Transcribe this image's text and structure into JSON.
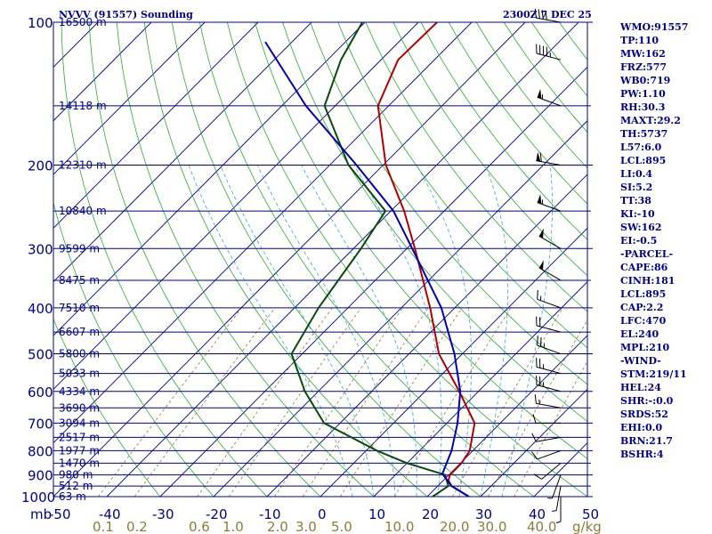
{
  "header": {
    "station": "NVVV (91557) Sounding",
    "time": "2300Z  7 DEC 25"
  },
  "indices": [
    "WMO:91557",
    "TP:110",
    "MW:162",
    "FRZ:577",
    "WB0:719",
    "PW:1.10",
    "RH:30.3",
    "MAXT:29.2",
    "TH:5737",
    "L57:6.0",
    "LCL:895",
    "LI:0.4",
    "SI:5.2",
    "TT:38",
    "KI:-10",
    "SW:162",
    "EI:-0.5",
    "-PARCEL-",
    "CAPE:86",
    "CINH:181",
    "LCL:895",
    "CAP:2.2",
    "LFC:470",
    "EL:240",
    "MPL:210",
    "-WIND-",
    "STM:219/11",
    "HEL:24",
    "SHR:-:0.0",
    "SRDS:52",
    "EHI:0.0",
    "BRN:21.7",
    "BSHR:4"
  ],
  "colors": {
    "temperature": "#b00000",
    "dewpoint": "#0a4a0a",
    "parcel": "#0000b0",
    "isobar": "#00008b",
    "isotherm": "#00008b",
    "dry_adiabat": "#2eaa2e",
    "moist_adiabat": "#36a6d6",
    "mixing_ratio": "#8b7d3a",
    "labels": "#00008b"
  },
  "chart_data": {
    "type": "line",
    "title": "NVVV (91557) Sounding",
    "xlabel": "",
    "ylabel": "mb",
    "ylim": [
      1000,
      100
    ],
    "xlim": [
      -50,
      50
    ],
    "y_scale": "log",
    "pressure_ticks": [
      {
        "p": 100,
        "label": "100"
      },
      {
        "p": 200,
        "label": "200"
      },
      {
        "p": 300,
        "label": "300"
      },
      {
        "p": 400,
        "label": "400"
      },
      {
        "p": 500,
        "label": "500"
      },
      {
        "p": 600,
        "label": "600"
      },
      {
        "p": 700,
        "label": "700"
      },
      {
        "p": 800,
        "label": "800"
      },
      {
        "p": 900,
        "label": "900"
      },
      {
        "p": 1000,
        "label": "1000"
      }
    ],
    "temperature_ticks": [
      "-50",
      "-40",
      "-30",
      "-20",
      "-10",
      "0",
      "10",
      "20",
      "30",
      "40",
      "50"
    ],
    "height_labels": [
      {
        "p": 100,
        "label": "16500 m"
      },
      {
        "p": 150,
        "label": "14118 m"
      },
      {
        "p": 200,
        "label": "12310 m"
      },
      {
        "p": 250,
        "label": "10840 m"
      },
      {
        "p": 300,
        "label": "9599 m"
      },
      {
        "p": 350,
        "label": "8475 m"
      },
      {
        "p": 400,
        "label": "7510 m"
      },
      {
        "p": 450,
        "label": "6607 m"
      },
      {
        "p": 500,
        "label": "5800 m"
      },
      {
        "p": 550,
        "label": "5033 m"
      },
      {
        "p": 600,
        "label": "4334 m"
      },
      {
        "p": 650,
        "label": "3690 m"
      },
      {
        "p": 700,
        "label": "3094 m"
      },
      {
        "p": 750,
        "label": "2517 m"
      },
      {
        "p": 800,
        "label": "1977 m"
      },
      {
        "p": 850,
        "label": "1470 m"
      },
      {
        "p": 900,
        "label": "980 m"
      },
      {
        "p": 950,
        "label": "512 m"
      },
      {
        "p": 1000,
        "label": "63 m"
      }
    ],
    "mixing_ratio_labels": [
      {
        "w": 0.1,
        "label": "0.1"
      },
      {
        "w": 0.2,
        "label": "0.2"
      },
      {
        "w": 0.6,
        "label": "0.6"
      },
      {
        "w": 1.0,
        "label": "1.0"
      },
      {
        "w": 2.0,
        "label": "2.0"
      },
      {
        "w": 3.0,
        "label": "3.0"
      },
      {
        "w": 5.0,
        "label": "5.0"
      },
      {
        "w": 10.0,
        "label": "10.0"
      },
      {
        "w": 20.0,
        "label": "20.0"
      },
      {
        "w": 30.0,
        "label": "30.0"
      },
      {
        "w": 40.0,
        "label": "40.0"
      }
    ],
    "mixing_ratio_unit": "g/kg",
    "series": [
      {
        "key": "temperature",
        "points": [
          [
            1000,
            27.8
          ],
          [
            950,
            22.6
          ],
          [
            925,
            21.0
          ],
          [
            900,
            20.2
          ],
          [
            850,
            20.2
          ],
          [
            800,
            19.4
          ],
          [
            700,
            15.2
          ],
          [
            600,
            6.4
          ],
          [
            500,
            -4.4
          ],
          [
            400,
            -14.6
          ],
          [
            300,
            -28.5
          ],
          [
            250,
            -37.5
          ],
          [
            200,
            -49.5
          ],
          [
            150,
            -62.0
          ],
          [
            120,
            -66.8
          ],
          [
            100,
            -66.5
          ]
        ]
      },
      {
        "key": "dewpoint",
        "points": [
          [
            1000,
            21.0
          ],
          [
            950,
            22.0
          ],
          [
            900,
            19.3
          ],
          [
            850,
            10.0
          ],
          [
            800,
            2.0
          ],
          [
            700,
            -13.0
          ],
          [
            600,
            -22.5
          ],
          [
            500,
            -32.0
          ],
          [
            400,
            -35.5
          ],
          [
            300,
            -38.6
          ],
          [
            250,
            -41.0
          ],
          [
            200,
            -56.5
          ],
          [
            150,
            -72.0
          ],
          [
            120,
            -77.5
          ],
          [
            100,
            -80.5
          ]
        ]
      },
      {
        "key": "parcel",
        "points": [
          [
            1000,
            27.8
          ],
          [
            950,
            22.6
          ],
          [
            895,
            18.6
          ],
          [
            800,
            16.0
          ],
          [
            700,
            12.0
          ],
          [
            600,
            6.6
          ],
          [
            500,
            -1.5
          ],
          [
            400,
            -12.5
          ],
          [
            300,
            -29.0
          ],
          [
            250,
            -39.5
          ],
          [
            200,
            -55.0
          ],
          [
            150,
            -75.5
          ],
          [
            110,
            -95.0
          ]
        ]
      }
    ],
    "winds": [
      {
        "p": 1000,
        "dir": 180,
        "spd": 5
      },
      {
        "p": 950,
        "dir": 190,
        "spd": 5
      },
      {
        "p": 900,
        "dir": 200,
        "spd": 5
      },
      {
        "p": 850,
        "dir": 230,
        "spd": 10
      },
      {
        "p": 800,
        "dir": 250,
        "spd": 10
      },
      {
        "p": 750,
        "dir": 260,
        "spd": 10
      },
      {
        "p": 700,
        "dir": 270,
        "spd": 10
      },
      {
        "p": 650,
        "dir": 280,
        "spd": 15
      },
      {
        "p": 600,
        "dir": 285,
        "spd": 25
      },
      {
        "p": 550,
        "dir": 285,
        "spd": 25
      },
      {
        "p": 500,
        "dir": 290,
        "spd": 25
      },
      {
        "p": 450,
        "dir": 285,
        "spd": 20
      },
      {
        "p": 400,
        "dir": 290,
        "spd": 15
      },
      {
        "p": 350,
        "dir": 300,
        "spd": 50
      },
      {
        "p": 300,
        "dir": 300,
        "spd": 50
      },
      {
        "p": 250,
        "dir": 290,
        "spd": 55
      },
      {
        "p": 200,
        "dir": 280,
        "spd": 60
      },
      {
        "p": 150,
        "dir": 290,
        "spd": 55
      },
      {
        "p": 120,
        "dir": 285,
        "spd": 45
      },
      {
        "p": 100,
        "dir": 280,
        "spd": 40
      }
    ]
  }
}
